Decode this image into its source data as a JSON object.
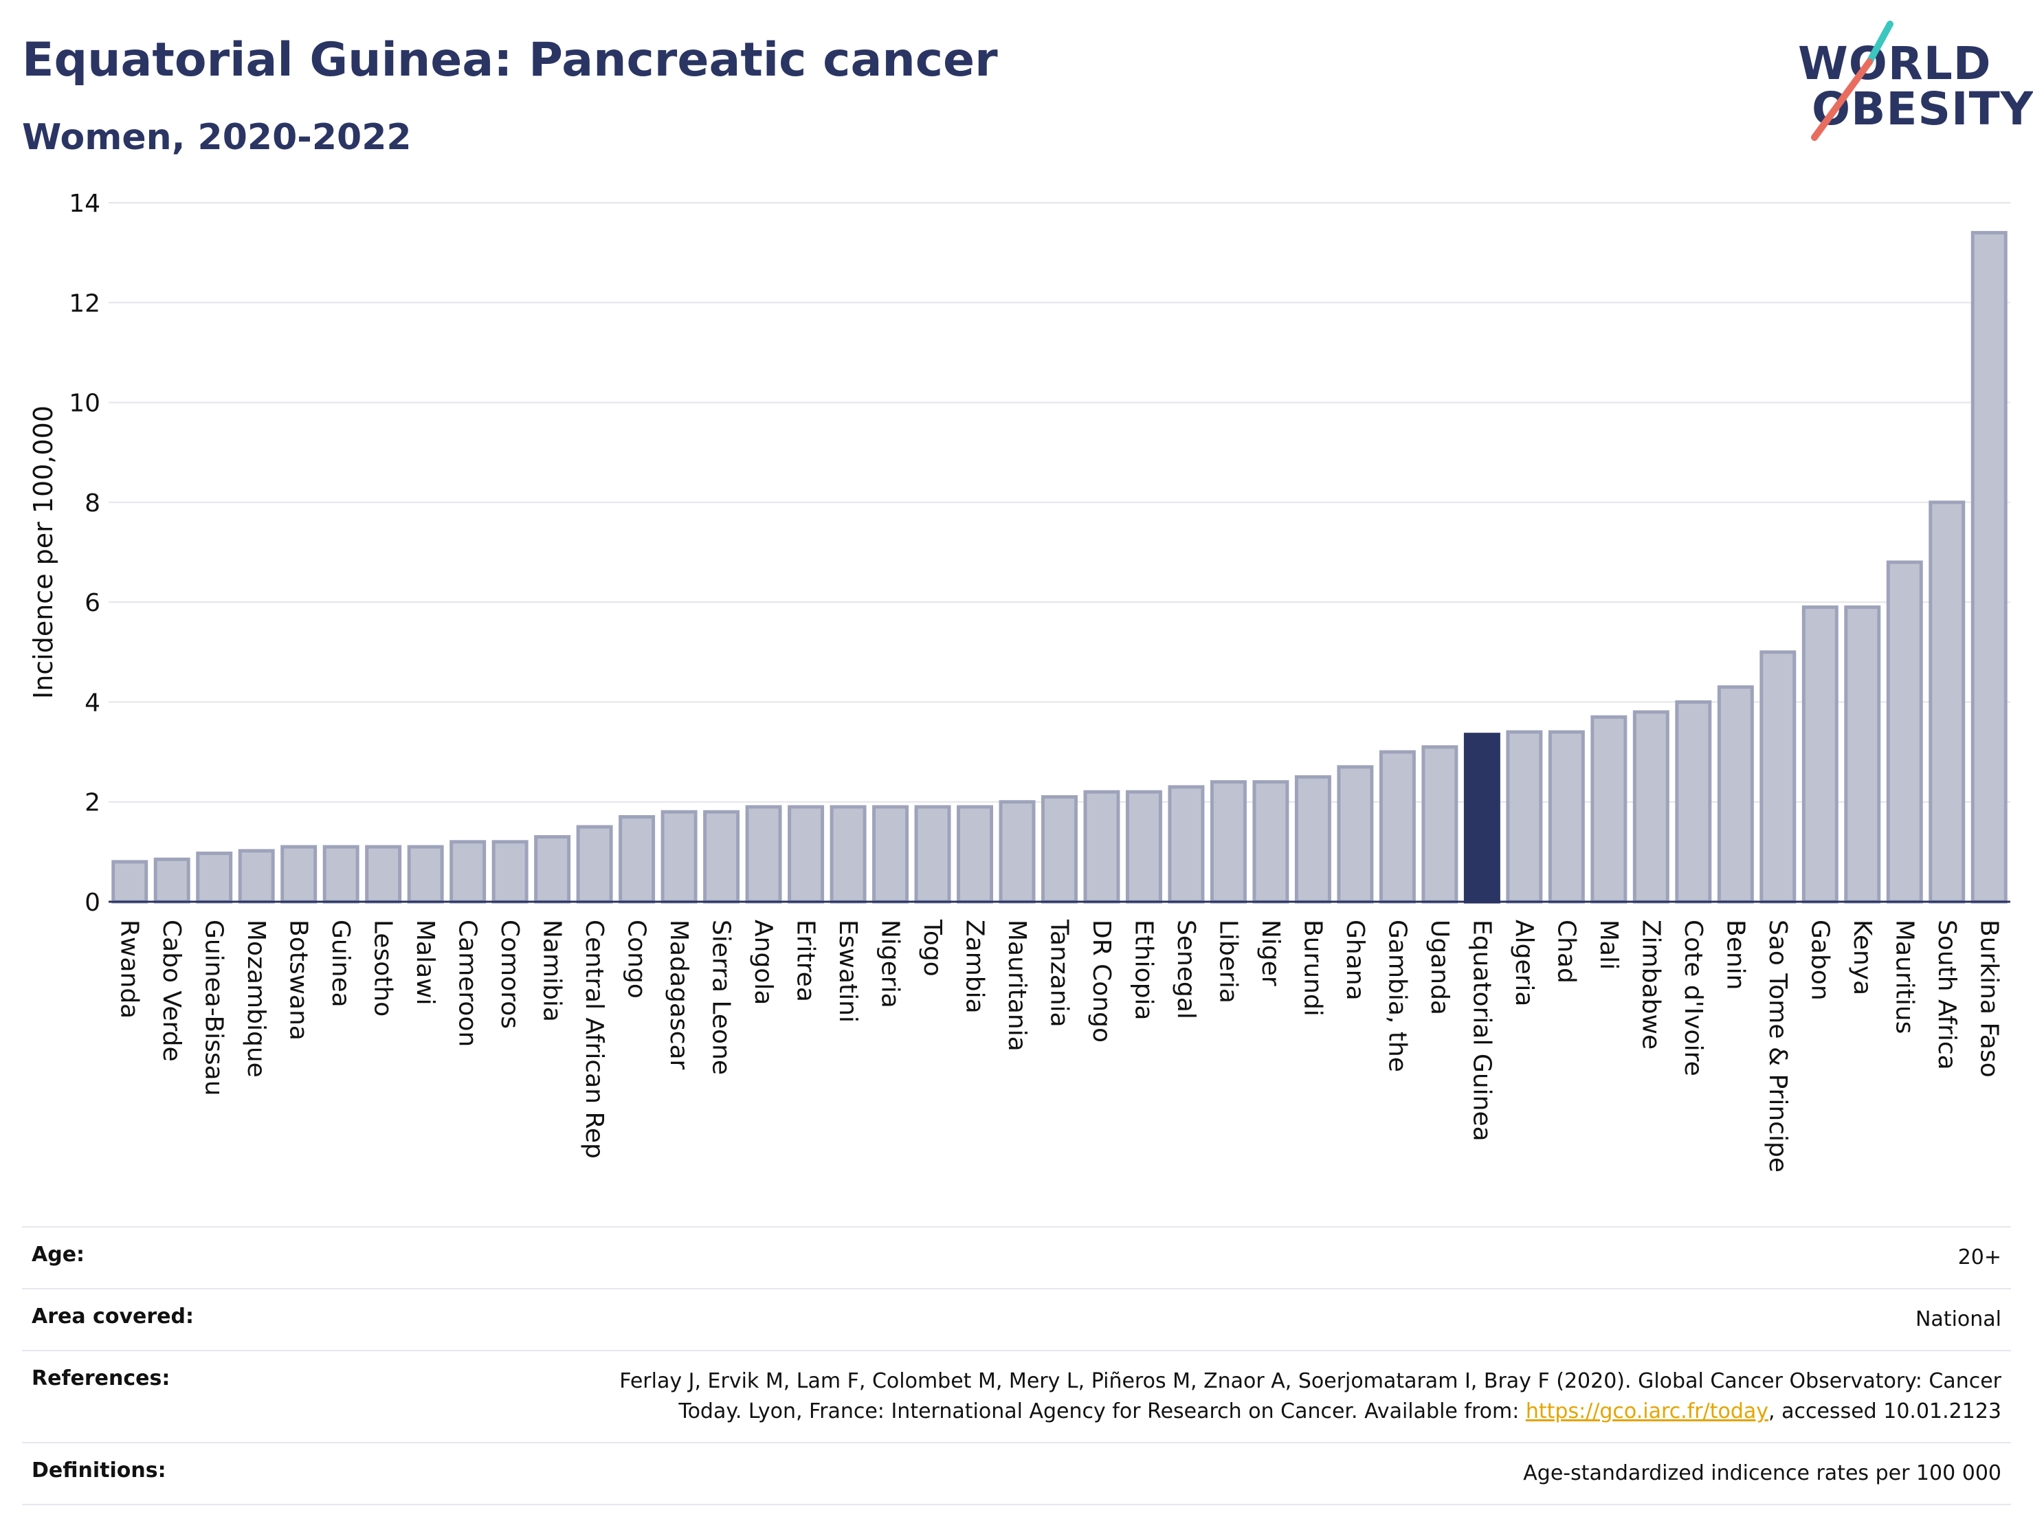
{
  "header": {
    "title": "Equatorial Guinea: Pancreatic cancer",
    "subtitle": "Women, 2020-2022"
  },
  "logo": {
    "line1": "WORLD",
    "line2": "OBESITY"
  },
  "colors": {
    "bar": "#bfc3d1",
    "bar_border": "#9ea3bb",
    "highlight": "#2b3563",
    "text": "#2b3563"
  },
  "chart_data": {
    "type": "bar",
    "ylabel": "Incidence per 100,000",
    "ylim": [
      0,
      14
    ],
    "yticks": [
      0,
      2,
      4,
      6,
      8,
      10,
      12,
      14
    ],
    "grid": true,
    "highlight": "Equatorial Guinea",
    "categories": [
      "Rwanda",
      "Cabo Verde",
      "Guinea-Bissau",
      "Mozambique",
      "Botswana",
      "Guinea",
      "Lesotho",
      "Malawi",
      "Cameroon",
      "Comoros",
      "Namibia",
      "Central African Rep",
      "Congo",
      "Madagascar",
      "Sierra Leone",
      "Angola",
      "Eritrea",
      "Eswatini",
      "Nigeria",
      "Togo",
      "Zambia",
      "Mauritania",
      "Tanzania",
      "DR Congo",
      "Ethiopia",
      "Senegal",
      "Liberia",
      "Niger",
      "Burundi",
      "Ghana",
      "Gambia, the",
      "Uganda",
      "Equatorial Guinea",
      "Algeria",
      "Chad",
      "Mali",
      "Zimbabwe",
      "Cote d'Ivoire",
      "Benin",
      "Sao Tome & Principe",
      "Gabon",
      "Kenya",
      "Mauritius",
      "South Africa",
      "Burkina Faso"
    ],
    "values": [
      0.8,
      0.85,
      0.97,
      1.02,
      1.1,
      1.1,
      1.1,
      1.1,
      1.2,
      1.2,
      1.3,
      1.5,
      1.7,
      1.8,
      1.8,
      1.9,
      1.9,
      1.9,
      1.9,
      1.9,
      1.9,
      2.0,
      2.1,
      2.2,
      2.2,
      2.3,
      2.4,
      2.4,
      2.5,
      2.7,
      3.0,
      3.1,
      3.35,
      3.4,
      3.4,
      3.7,
      3.8,
      4.0,
      4.3,
      5.0,
      5.9,
      5.9,
      6.8,
      8.0,
      13.4
    ]
  },
  "info": {
    "age_label": "Age:",
    "age_value": "20+",
    "area_label": "Area covered:",
    "area_value": "National",
    "references_label": "References:",
    "references_line1": "Ferlay J, Ervik M, Lam F, Colombet M, Mery L, Piñeros M, Znaor A, Soerjomataram I, Bray F (2020). Global Cancer Observatory: Cancer",
    "references_line2_pre": "Today. Lyon, France: International Agency for Research on Cancer. Available from: ",
    "references_link": "https://gco.iarc.fr/today",
    "references_line2_post": ", accessed 10.01.2123",
    "definitions_label": "Definitions:",
    "definitions_value": "Age-standardized indicence rates per 100 000"
  }
}
